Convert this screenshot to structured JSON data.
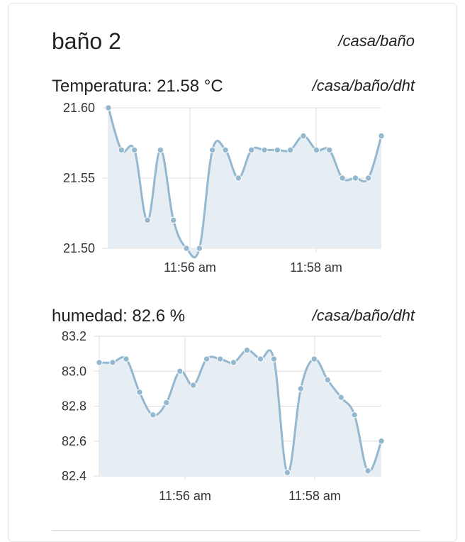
{
  "card": {
    "title": "baño 2",
    "path": "/casa/baño"
  },
  "sensors": [
    {
      "label": "Temperatura: 21.58 °C",
      "path": "/casa/baño/dht"
    },
    {
      "label": "humedad: 82.6 %",
      "path": "/casa/baño/dht"
    }
  ],
  "colors": {
    "line": "#94b8cf",
    "fill": "#e6eef3",
    "grid": "#dddddd",
    "point": "#94b8cf"
  },
  "chart_data": [
    {
      "type": "area",
      "title": "Temperatura: 21.58 °C",
      "ylim": [
        21.5,
        21.6
      ],
      "yticks": [
        "21.60",
        "21.55",
        "21.50"
      ],
      "xticks": [
        "11:56 am",
        "11:58 am"
      ],
      "x": [
        0,
        1,
        2,
        3,
        4,
        5,
        6,
        7,
        8,
        9,
        10,
        11,
        12,
        13,
        14,
        15,
        16,
        17,
        18,
        19,
        20,
        21
      ],
      "values": [
        21.6,
        21.57,
        21.57,
        21.52,
        21.57,
        21.52,
        21.5,
        21.5,
        21.57,
        21.57,
        21.55,
        21.57,
        21.57,
        21.57,
        21.57,
        21.58,
        21.57,
        21.57,
        21.55,
        21.55,
        21.55,
        21.58
      ],
      "grid": true
    },
    {
      "type": "area",
      "title": "humedad: 82.6 %",
      "ylim": [
        82.4,
        83.2
      ],
      "yticks": [
        "83.2",
        "83.0",
        "82.8",
        "82.6",
        "82.4"
      ],
      "xticks": [
        "11:56 am",
        "11:58 am"
      ],
      "x": [
        0,
        1,
        2,
        3,
        4,
        5,
        6,
        7,
        8,
        9,
        10,
        11,
        12,
        13,
        14,
        15,
        16,
        17,
        18,
        19,
        20,
        21
      ],
      "values": [
        83.05,
        83.05,
        83.07,
        82.88,
        82.75,
        82.82,
        83.0,
        82.92,
        83.07,
        83.07,
        83.05,
        83.12,
        83.07,
        83.07,
        82.42,
        82.9,
        83.07,
        82.95,
        82.85,
        82.75,
        82.43,
        82.6
      ],
      "grid": true
    }
  ]
}
